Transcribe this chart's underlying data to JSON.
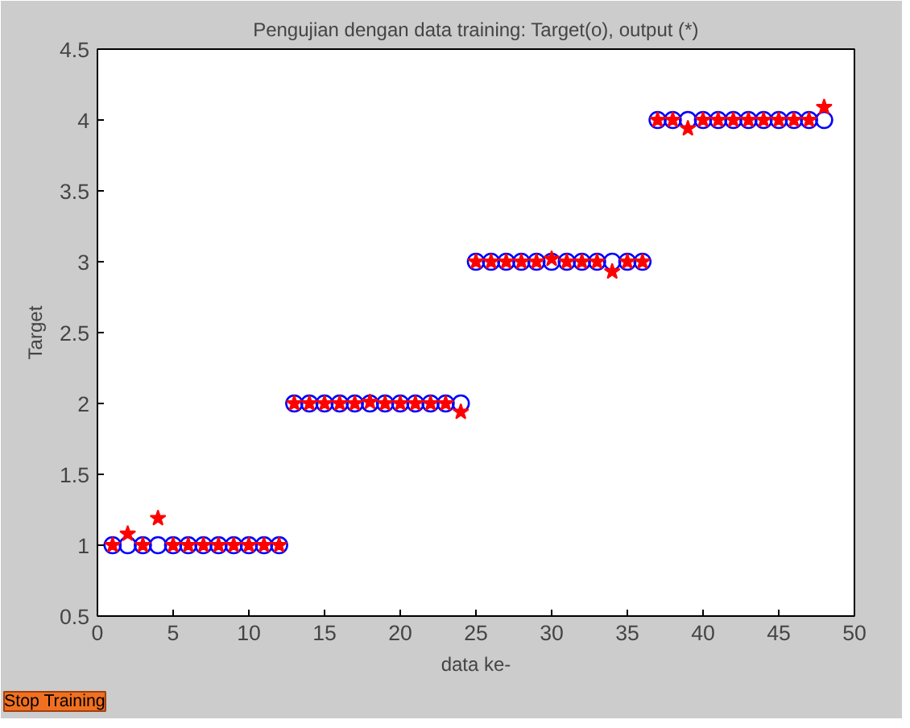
{
  "chart_data": {
    "type": "scatter",
    "title": "Pengujian dengan data training: Target(o), output (*)",
    "xlabel": "data ke-",
    "ylabel": "Target",
    "x": [
      1,
      2,
      3,
      4,
      5,
      6,
      7,
      8,
      9,
      10,
      11,
      12,
      13,
      14,
      15,
      16,
      17,
      18,
      19,
      20,
      21,
      22,
      23,
      24,
      25,
      26,
      27,
      28,
      29,
      30,
      31,
      32,
      33,
      34,
      35,
      36,
      37,
      38,
      39,
      40,
      41,
      42,
      43,
      44,
      45,
      46,
      47,
      48
    ],
    "series": [
      {
        "color": "#0000ff",
        "marker": "circle",
        "values": [
          1,
          1,
          1,
          1,
          1,
          1,
          1,
          1,
          1,
          1,
          1,
          1,
          2,
          2,
          2,
          2,
          2,
          2,
          2,
          2,
          2,
          2,
          2,
          2,
          3,
          3,
          3,
          3,
          3,
          3,
          3,
          3,
          3,
          3,
          3,
          3,
          4,
          4,
          4,
          4,
          4,
          4,
          4,
          4,
          4,
          4,
          4,
          4
        ]
      },
      {
        "color": "#ff0000",
        "marker": "star",
        "values": [
          1,
          1.08,
          1,
          1.19,
          1,
          1,
          1,
          1,
          1,
          1,
          1,
          1,
          2,
          2,
          2,
          2,
          2,
          2.01,
          2,
          2,
          2,
          2,
          2,
          1.94,
          3,
          3,
          3,
          3,
          3,
          3.02,
          3,
          3,
          3,
          2.93,
          3,
          3,
          4,
          4,
          3.94,
          4,
          4,
          4,
          4,
          4,
          4,
          4,
          4,
          4.09
        ]
      }
    ],
    "xlim": [
      0,
      50
    ],
    "xticks": [
      0,
      5,
      10,
      15,
      20,
      25,
      30,
      35,
      40,
      45,
      50
    ],
    "ylim": [
      0.5,
      4.5
    ],
    "yticks": [
      0.5,
      1,
      1.5,
      2,
      2.5,
      3,
      3.5,
      4,
      4.5
    ],
    "grid": false,
    "annotations": [
      "Stop Training"
    ]
  }
}
